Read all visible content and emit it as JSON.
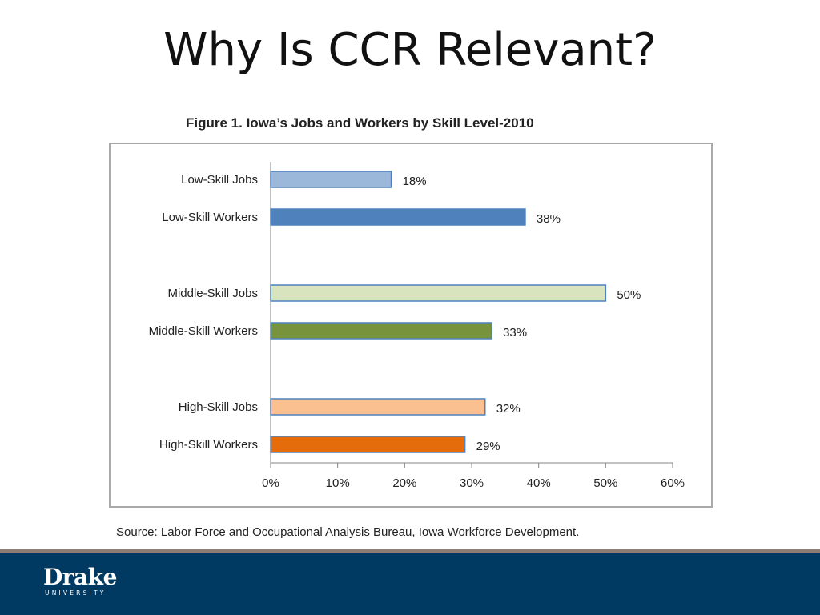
{
  "slide": {
    "title": "Why Is CCR Relevant?",
    "figure_caption": "Figure 1.  Iowa’s Jobs and Workers by Skill Level-2010",
    "source": "Source:  Labor Force and Occupational Analysis Bureau, Iowa Workforce Development."
  },
  "footer": {
    "logo_text": "Drake",
    "logo_subtext": "UNIVERSITY",
    "band_color": "#003a63"
  },
  "chart_data": {
    "type": "bar",
    "orientation": "horizontal",
    "title": "Figure 1.  Iowa’s Jobs and Workers by Skill Level-2010",
    "categories": [
      "Low-Skill Jobs",
      "Low-Skill Workers",
      "Middle-Skill Jobs",
      "Middle-Skill Workers",
      "High-Skill Jobs",
      "High-Skill Workers"
    ],
    "values": [
      18,
      38,
      50,
      33,
      32,
      29
    ],
    "value_labels": [
      "18%",
      "38%",
      "50%",
      "33%",
      "32%",
      "29%"
    ],
    "colors": [
      "#9bb7da",
      "#4f81bd",
      "#d7e4bd",
      "#77933c",
      "#fac090",
      "#e46c0a"
    ],
    "border_color": "#4f81bd",
    "xlim": [
      0,
      60
    ],
    "x_ticks": [
      "0%",
      "10%",
      "20%",
      "30%",
      "40%",
      "50%",
      "60%"
    ],
    "grid": false,
    "legend": "none",
    "xlabel": "",
    "ylabel": ""
  }
}
